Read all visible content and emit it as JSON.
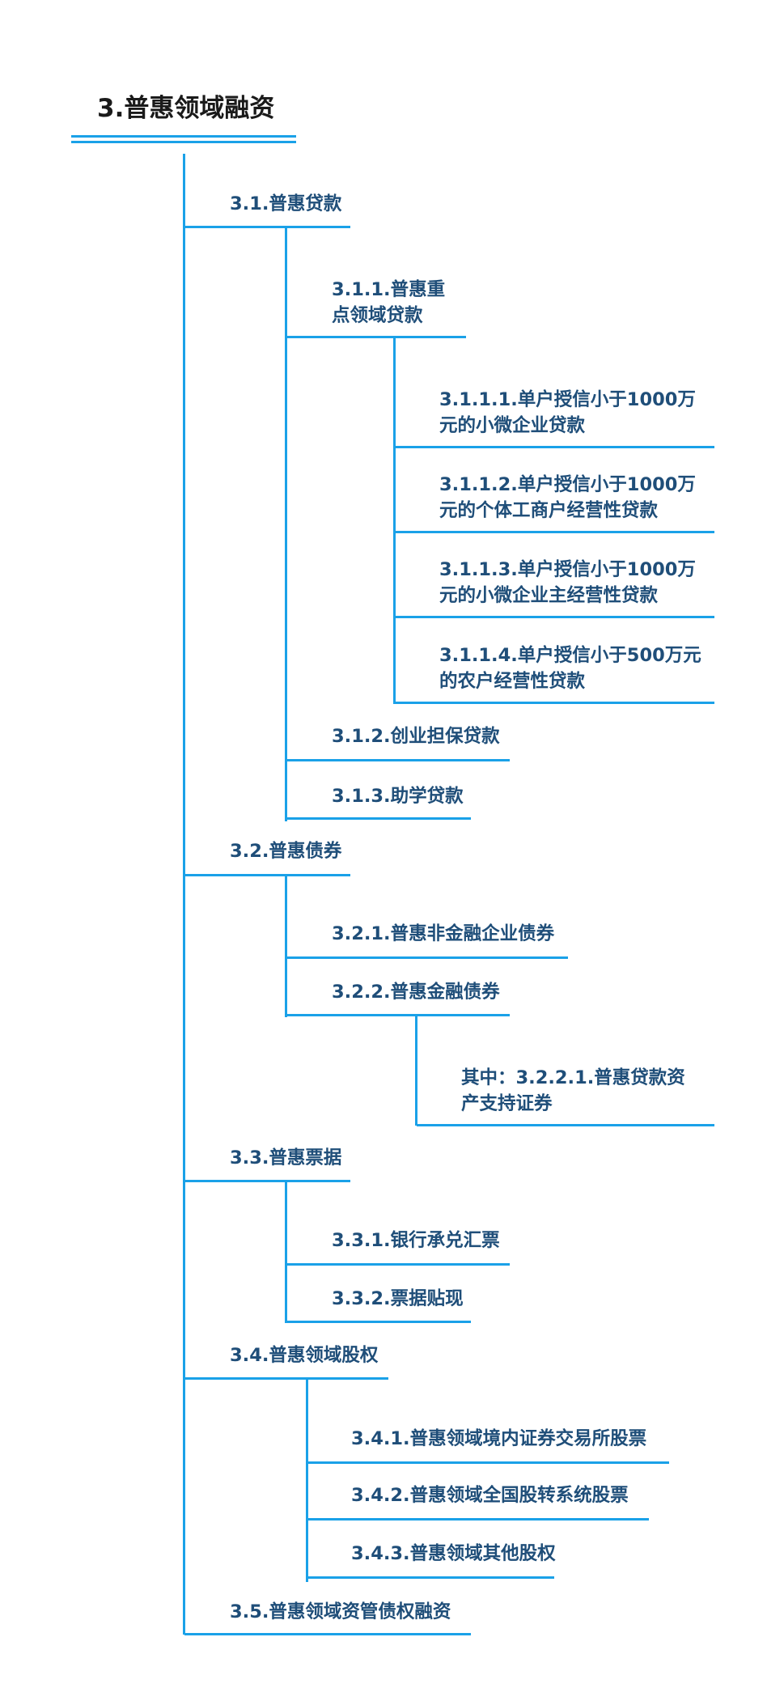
{
  "colors": {
    "title": "#1a1a1a",
    "node_text": "#1f4e79",
    "line": "#1aa1e8",
    "background": "#ffffff"
  },
  "root": {
    "label": "3.普惠领域融资"
  },
  "nodes": {
    "n3_1": "3.1.普惠贷款",
    "n3_1_1": [
      "3.1.1.普惠重",
      "点领域贷款"
    ],
    "n3_1_1_1": [
      "3.1.1.1.单户授信小于1000万",
      "元的小微企业贷款"
    ],
    "n3_1_1_2": [
      "3.1.1.2.单户授信小于1000万",
      "元的个体工商户经营性贷款"
    ],
    "n3_1_1_3": [
      "3.1.1.3.单户授信小于1000万",
      "元的小微企业主经营性贷款"
    ],
    "n3_1_1_4": [
      "3.1.1.4.单户授信小于500万元",
      "的农户经营性贷款"
    ],
    "n3_1_2": "3.1.2.创业担保贷款",
    "n3_1_3": "3.1.3.助学贷款",
    "n3_2": "3.2.普惠债券",
    "n3_2_1": "3.2.1.普惠非金融企业债券",
    "n3_2_2": "3.2.2.普惠金融债券",
    "n3_2_2_1": [
      "其中：3.2.2.1.普惠贷款资",
      "产支持证券"
    ],
    "n3_3": "3.3.普惠票据",
    "n3_3_1": "3.3.1.银行承兑汇票",
    "n3_3_2": "3.3.2.票据贴现",
    "n3_4": "3.4.普惠领域股权",
    "n3_4_1": "3.4.1.普惠领域境内证券交易所股票",
    "n3_4_2": "3.4.2.普惠领域全国股转系统股票",
    "n3_4_3": "3.4.3.普惠领域其他股权",
    "n3_5": "3.5.普惠领域资管债权融资"
  }
}
